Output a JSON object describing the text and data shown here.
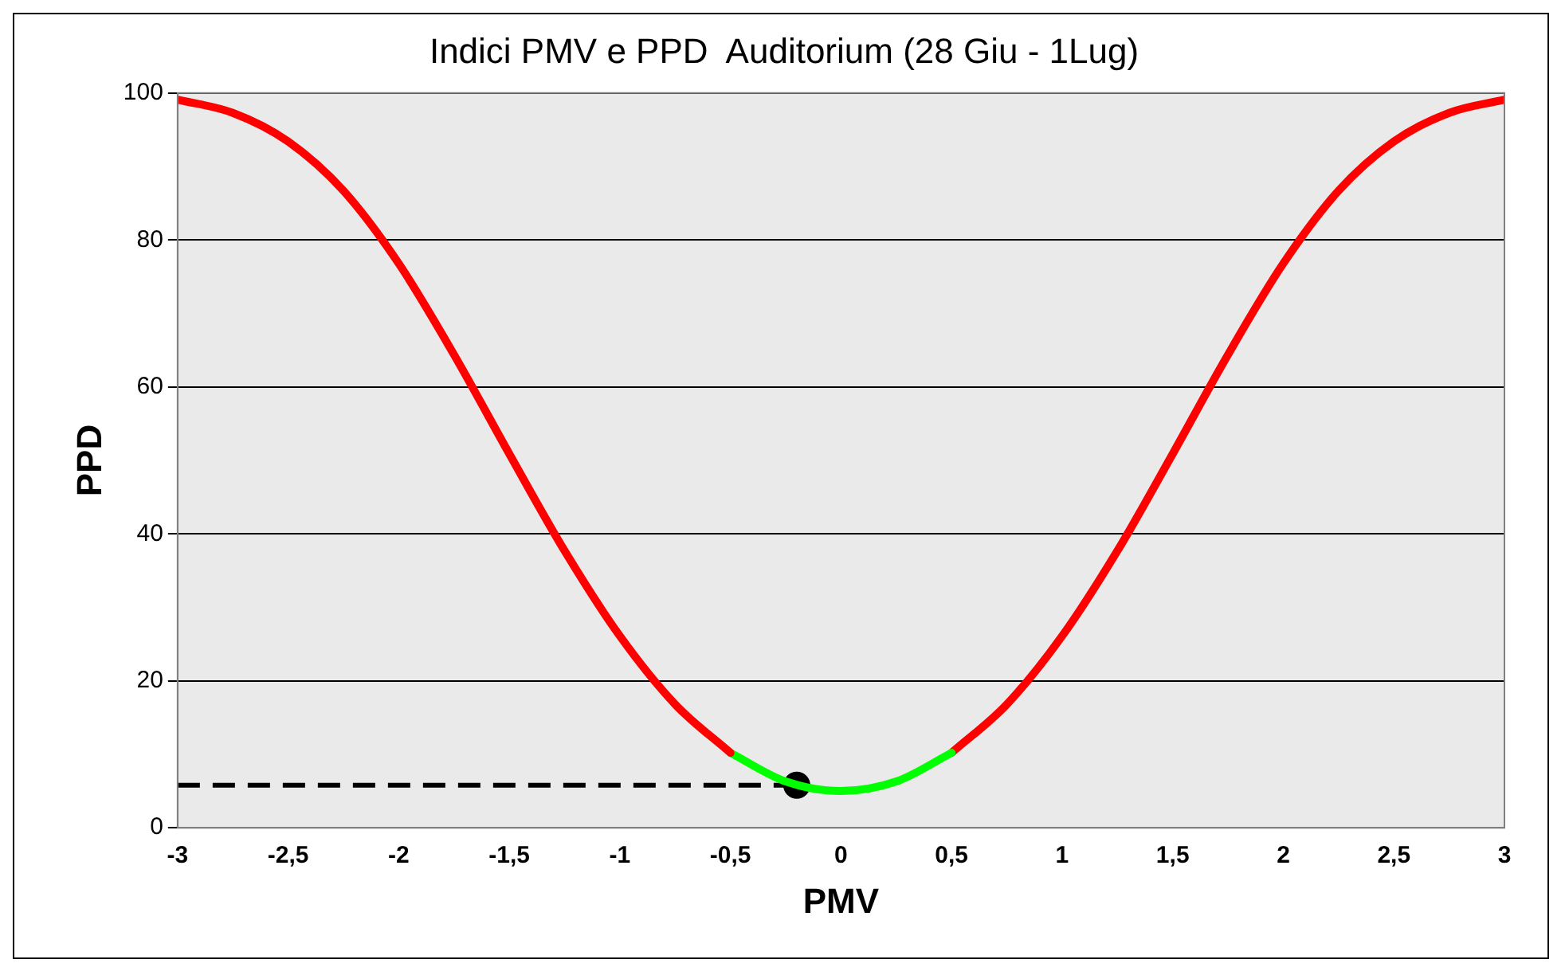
{
  "chart_data": {
    "type": "line",
    "title": "Indici PMV e PPD  Auditorium (28 Giu - 1Lug)",
    "xlabel": "PMV",
    "ylabel": "PPD",
    "xlim": [
      -3,
      3
    ],
    "xticks": [
      -3,
      {
        "value": -2.5,
        "label": "-2,5"
      },
      -2,
      {
        "value": -1.5,
        "label": "-1,5"
      },
      -1,
      {
        "value": -0.5,
        "label": "-0,5"
      },
      0,
      {
        "value": 0.5,
        "label": "0,5"
      },
      1,
      {
        "value": 1.5,
        "label": "1,5"
      },
      2,
      {
        "value": 2.5,
        "label": "2,5"
      },
      3
    ],
    "ylim": [
      0,
      100
    ],
    "yticks": [
      0,
      20,
      40,
      60,
      80,
      100
    ],
    "grid": "y",
    "legend": false,
    "series": [
      {
        "color": "#ff0000",
        "x": [
          -3,
          -2.75,
          -2.5,
          -2.25,
          -2,
          -1.75,
          -1.5,
          -1.25,
          -1,
          -0.75,
          -0.5
        ],
        "values": [
          99.1,
          97.3,
          93.4,
          86.7,
          76.8,
          64.4,
          50.9,
          37.7,
          26.1,
          16.8,
          10.2
        ]
      },
      {
        "color": "#00ff00",
        "x": [
          -0.5,
          -0.25,
          0,
          0.25,
          0.5
        ],
        "values": [
          10.2,
          6.3,
          5,
          6.3,
          10.2
        ]
      },
      {
        "color": "#ff0000",
        "x": [
          0.5,
          0.75,
          1,
          1.25,
          1.5,
          1.75,
          2,
          2.25,
          2.5,
          2.75,
          3
        ],
        "values": [
          10.2,
          16.8,
          26.1,
          37.7,
          50.9,
          64.4,
          76.8,
          86.7,
          93.4,
          97.3,
          99.1
        ]
      },
      {
        "color": "#000000",
        "line_style": "dashed",
        "marker": "none",
        "x": [
          -3,
          -0.2
        ],
        "values": [
          5.8,
          5.8
        ]
      },
      {
        "type": "scatter",
        "color": "#000000",
        "marker": "circle",
        "x": [
          -0.2
        ],
        "values": [
          5.8
        ]
      }
    ]
  }
}
